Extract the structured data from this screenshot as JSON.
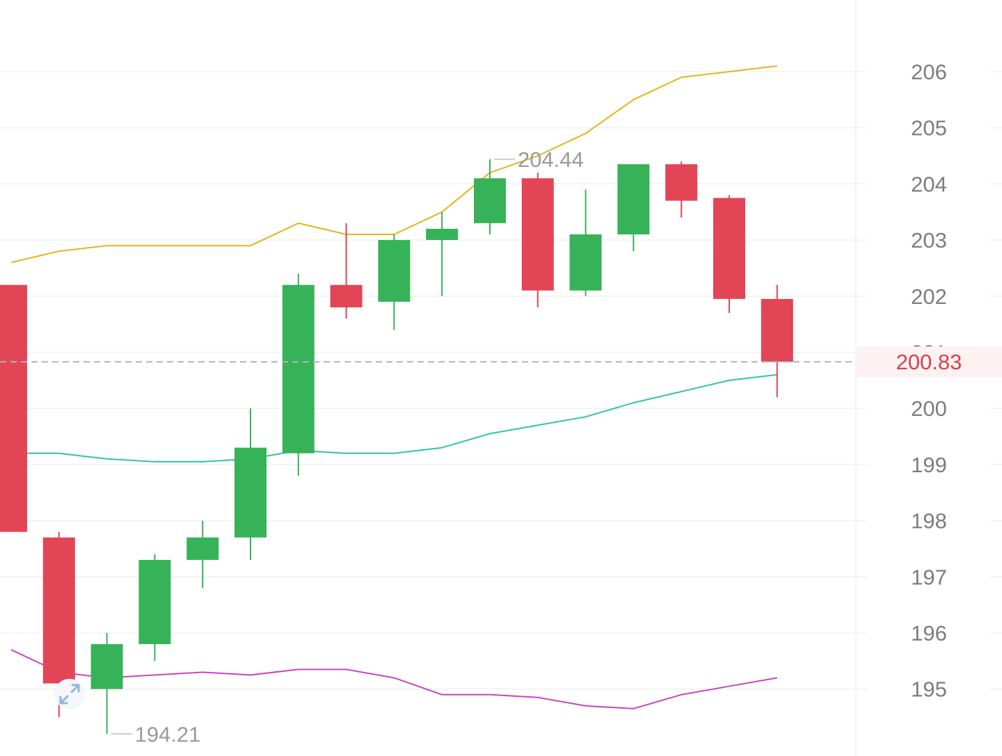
{
  "chart_data": {
    "type": "candlestick",
    "y_axis": {
      "ticks": [
        "206",
        "205",
        "204",
        "203",
        "202",
        "201",
        "200",
        "199",
        "198",
        "197",
        "196",
        "195"
      ],
      "range": [
        193.8,
        207.2
      ],
      "position": "right",
      "grid": true
    },
    "candles": [
      {
        "open": 202.2,
        "close": 197.8,
        "high": 202.2,
        "low": 197.8
      },
      {
        "open": 197.7,
        "close": 195.1,
        "high": 197.8,
        "low": 194.5
      },
      {
        "open": 195.0,
        "close": 195.8,
        "high": 196.0,
        "low": 194.2
      },
      {
        "open": 195.8,
        "close": 197.3,
        "high": 197.4,
        "low": 195.5
      },
      {
        "open": 197.3,
        "close": 197.7,
        "high": 198.0,
        "low": 196.8
      },
      {
        "open": 197.7,
        "close": 199.3,
        "high": 200.0,
        "low": 197.3
      },
      {
        "open": 199.2,
        "close": 202.2,
        "high": 202.4,
        "low": 198.8
      },
      {
        "open": 202.2,
        "close": 201.8,
        "high": 203.3,
        "low": 201.6
      },
      {
        "open": 201.9,
        "close": 203.0,
        "high": 203.1,
        "low": 201.4
      },
      {
        "open": 203.0,
        "close": 203.2,
        "high": 203.5,
        "low": 202.0
      },
      {
        "open": 203.3,
        "close": 204.1,
        "high": 204.44,
        "low": 203.1
      },
      {
        "open": 204.1,
        "close": 202.1,
        "high": 204.2,
        "low": 201.8
      },
      {
        "open": 202.1,
        "close": 203.1,
        "high": 203.9,
        "low": 202.0
      },
      {
        "open": 203.1,
        "close": 204.35,
        "high": 204.35,
        "low": 202.8
      },
      {
        "open": 204.35,
        "close": 203.7,
        "high": 204.4,
        "low": 203.4
      },
      {
        "open": 203.75,
        "close": 201.95,
        "high": 203.8,
        "low": 201.7
      },
      {
        "open": 201.95,
        "close": 200.83,
        "high": 202.2,
        "low": 200.2
      }
    ],
    "bands": [
      {
        "name": "upper",
        "color": "#e6b417",
        "values": [
          202.6,
          202.8,
          202.9,
          202.9,
          202.9,
          202.9,
          203.3,
          203.1,
          203.1,
          203.5,
          204.2,
          204.5,
          204.9,
          205.5,
          205.9,
          206.0,
          206.1
        ]
      },
      {
        "name": "middle",
        "color": "#2ec6a0",
        "values": [
          199.2,
          199.2,
          199.1,
          199.05,
          199.05,
          199.1,
          199.25,
          199.2,
          199.2,
          199.3,
          199.55,
          199.7,
          199.85,
          200.1,
          200.3,
          200.5,
          200.6
        ]
      },
      {
        "name": "lower",
        "color": "#c944c2",
        "values": [
          195.7,
          195.3,
          195.2,
          195.25,
          195.3,
          195.25,
          195.35,
          195.35,
          195.2,
          194.9,
          194.9,
          194.85,
          194.7,
          194.65,
          194.9,
          195.05,
          195.2
        ]
      }
    ],
    "annotations": {
      "high_label": "204.44",
      "low_label": "194.21",
      "current_price": 200.83,
      "current_price_label": "200.83"
    },
    "colors": {
      "up": "#36b358",
      "down": "#e24556",
      "grid": "#efefef",
      "price_line": "#b3b3b3",
      "price_label": "#d9404f",
      "price_label_bg": "#fdf1f1"
    }
  }
}
